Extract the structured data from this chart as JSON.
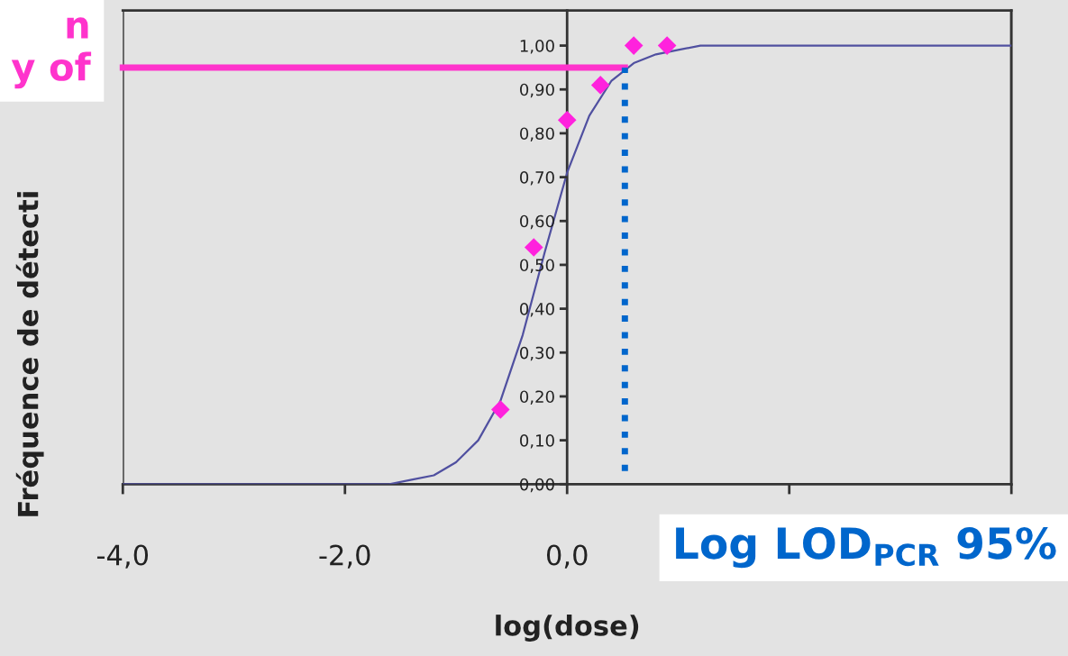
{
  "chart_data": {
    "type": "scatter",
    "xlabel": "log(dose)",
    "ylabel": "Fréquence de détecti",
    "xlim": [
      -4,
      4
    ],
    "ylim": [
      0,
      1.08
    ],
    "xticks": [
      {
        "value": -4,
        "label": "-4,0"
      },
      {
        "value": -2,
        "label": "-2,0"
      },
      {
        "value": 0,
        "label": "0,0"
      },
      {
        "value": 2,
        "label": null
      },
      {
        "value": 4,
        "label": null
      }
    ],
    "yticks": [
      {
        "value": 0,
        "label": "0,00"
      },
      {
        "value": 0.1,
        "label": "0,10"
      },
      {
        "value": 0.2,
        "label": "0,20"
      },
      {
        "value": 0.3,
        "label": "0,30"
      },
      {
        "value": 0.4,
        "label": "0,40"
      },
      {
        "value": 0.5,
        "label": "0,50"
      },
      {
        "value": 0.6,
        "label": "0,60"
      },
      {
        "value": 0.7,
        "label": "0,70"
      },
      {
        "value": 0.8,
        "label": "0,80"
      },
      {
        "value": 0.9,
        "label": "0,90"
      },
      {
        "value": 1.0,
        "label": "1,00"
      }
    ],
    "grid": false,
    "legend": false,
    "series": [
      {
        "type": "line",
        "color": "#5050a0",
        "marker": "none",
        "line_style": "solid",
        "x": [
          -4,
          -2,
          -1.6,
          -1.4,
          -1.2,
          -1.0,
          -0.8,
          -0.6,
          -0.4,
          -0.2,
          0,
          0.2,
          0.4,
          0.6,
          0.8,
          1.0,
          1.2,
          1.5,
          2,
          4
        ],
        "values": [
          0,
          0,
          0,
          0.01,
          0.02,
          0.05,
          0.1,
          0.19,
          0.34,
          0.53,
          0.71,
          0.84,
          0.92,
          0.96,
          0.98,
          0.99,
          1.0,
          1.0,
          1.0,
          1.0
        ]
      },
      {
        "type": "scatter",
        "color": "#ff22dd",
        "marker": "diamond",
        "x": [
          -0.6,
          -0.3,
          0,
          0.3,
          0.6,
          0.9
        ],
        "values": [
          0.17,
          0.54,
          0.83,
          0.91,
          1.0,
          1.0
        ]
      }
    ],
    "ref_lines": [
      {
        "axis": "y",
        "value": 0.95,
        "color": "#ff33cc",
        "line_style": "solid",
        "label": null
      },
      {
        "axis": "x",
        "value": 0.52,
        "color": "#0066cc",
        "line_style": "dotted",
        "label": null
      }
    ],
    "annotations": [
      "n\ny of",
      "Log LOD$_{PCR}$ 95%"
    ]
  }
}
